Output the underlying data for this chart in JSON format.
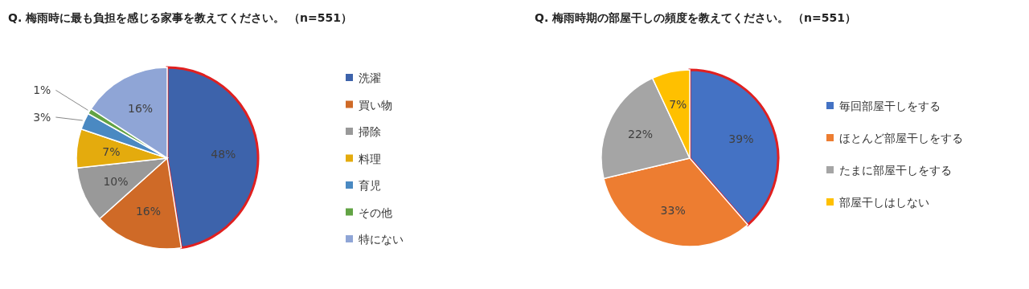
{
  "chart_data": [
    {
      "type": "pie",
      "title": "Q. 梅雨時に最も負担を感じる家事を教えてください。 （n=551）",
      "categories": [
        "洗濯",
        "買い物",
        "掃除",
        "料理",
        "育児",
        "その他",
        "特にない"
      ],
      "values": [
        48,
        16,
        10,
        7,
        3,
        1,
        16
      ],
      "value_labels": [
        "48%",
        "16%",
        "10%",
        "7%",
        "3%",
        "1%",
        "16%"
      ],
      "colors": [
        "#3d63ab",
        "#cf6a27",
        "#999999",
        "#e4ab0d",
        "#4a89c2",
        "#62a344",
        "#8fa5d6"
      ],
      "legend": "right"
    },
    {
      "type": "pie",
      "title": "Q. 梅雨時期の部屋干しの頻度を教えてください。 （n=551）",
      "categories": [
        "毎回部屋干しをする",
        "ほとんど部屋干しをする",
        "たまに部屋干しをする",
        "部屋干しはしない"
      ],
      "values": [
        39,
        33,
        22,
        7
      ],
      "value_labels": [
        "39%",
        "33%",
        "22%",
        "7%"
      ],
      "colors": [
        "#4472c4",
        "#ed7d31",
        "#a5a5a5",
        "#ffc000"
      ],
      "legend": "right"
    }
  ]
}
